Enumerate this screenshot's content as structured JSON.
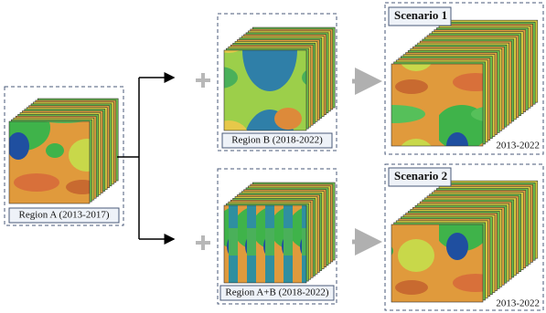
{
  "nodes": [
    {
      "label": "Region A (2013-2017)"
    },
    {
      "label": "Region B (2018-2022)"
    },
    {
      "label": "Region A+B (2018-2022)"
    },
    {
      "label": "Scenario 1",
      "period": "2013-2022"
    },
    {
      "label": "Scenario 2",
      "period": "2013-2022"
    }
  ]
}
